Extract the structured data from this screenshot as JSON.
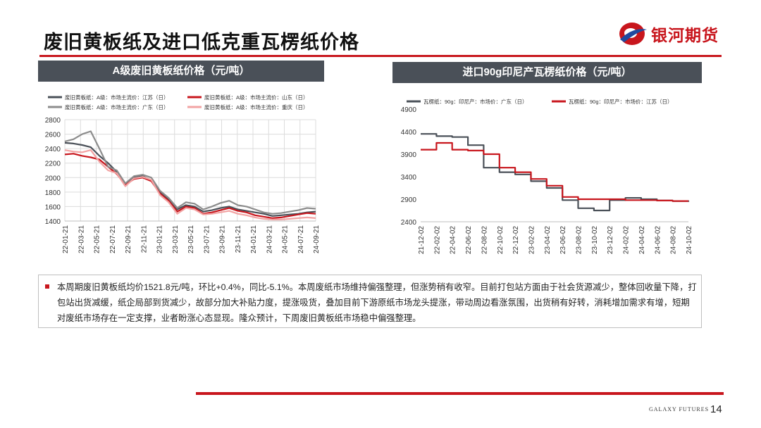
{
  "page": {
    "title": "废旧黄板纸及进口低克重瓦楞纸价格",
    "brand": "银河期货",
    "footer_brand": "GALAXY FUTURES",
    "page_number": "14",
    "accent_color": "#c8161d",
    "header_bg": "#4a5058"
  },
  "note": {
    "text": "本周期废旧黄板纸均价1521.8元/吨，环比+0.4%，同比-5.1%。本周废纸市场维持偏强整理，但涨势稍有收窄。目前打包站方面由于社会货源减少，整体回收量下降，打包站出货减缓，纸企局部到货减少，故部分加大补贴力度，提涨吸货，叠加目前下游原纸市场龙头提涨，带动周边看涨氛围，出货稍有好转，消耗增加需求有增，短期对废纸市场存在一定支撑，业者盼涨心态显现。隆众预计，下周废旧黄板纸市场稳中偏强整理。"
  },
  "chart_data": [
    {
      "type": "line",
      "title": "A级废旧黄板纸价格（元/吨）",
      "ylim": [
        1400,
        2800
      ],
      "yticks": [
        1400,
        1600,
        1800,
        2000,
        2200,
        2400,
        2600,
        2800
      ],
      "grid": true,
      "legend_position": "top",
      "x_labels": [
        "22-01-21",
        "22-03-21",
        "22-05-21",
        "22-07-21",
        "22-09-21",
        "22-11-21",
        "23-01-21",
        "23-03-21",
        "23-05-21",
        "23-07-21",
        "23-09-21",
        "23-11-21",
        "24-01-21",
        "24-03-21",
        "24-05-21",
        "24-07-21",
        "24-09-21"
      ],
      "series": [
        {
          "name": "废旧黄板纸：A级：市场主流价：江苏（日）",
          "color": "#4a5058",
          "values": [
            2480,
            2470,
            2450,
            2420,
            2300,
            2200,
            2080,
            1900,
            2000,
            2020,
            1960,
            1800,
            1700,
            1560,
            1620,
            1600,
            1530,
            1550,
            1580,
            1600,
            1560,
            1540,
            1520,
            1500,
            1470,
            1480,
            1490,
            1500,
            1520,
            1530
          ]
        },
        {
          "name": "废旧黄板纸：A级：市场主流价：山东（日）",
          "color": "#c8161d",
          "values": [
            2320,
            2330,
            2300,
            2280,
            2250,
            2150,
            2050,
            1900,
            1980,
            2000,
            1950,
            1780,
            1680,
            1530,
            1600,
            1580,
            1500,
            1520,
            1550,
            1580,
            1540,
            1520,
            1480,
            1460,
            1440,
            1450,
            1470,
            1490,
            1510,
            1500
          ]
        },
        {
          "name": "废旧黄板纸：A级：市场主流价：广东（日）",
          "color": "#8c8c8c",
          "values": [
            2500,
            2530,
            2600,
            2640,
            2400,
            2150,
            2100,
            1920,
            2020,
            2040,
            2000,
            1820,
            1720,
            1580,
            1660,
            1640,
            1560,
            1600,
            1650,
            1680,
            1620,
            1600,
            1560,
            1520,
            1500,
            1510,
            1530,
            1550,
            1580,
            1570
          ]
        },
        {
          "name": "废旧黄板纸：A级：市场主流价：重庆（日）",
          "color": "#f2a3a3",
          "values": [
            2380,
            2360,
            2350,
            2380,
            2220,
            2100,
            2060,
            1880,
            1990,
            2010,
            1970,
            1760,
            1660,
            1500,
            1580,
            1560,
            1490,
            1500,
            1520,
            1540,
            1500,
            1480,
            1450,
            1430,
            1420,
            1420,
            1430,
            1440,
            1450,
            1440
          ]
        }
      ]
    },
    {
      "type": "line",
      "title": "进口90g印尼产瓦楞纸价格（元/吨）",
      "ylim": [
        2400,
        4900
      ],
      "yticks": [
        2400,
        2900,
        3400,
        3900,
        4400,
        4900
      ],
      "grid": false,
      "legend_position": "top",
      "x_labels": [
        "21-12-02",
        "22-02-02",
        "22-04-02",
        "22-06-02",
        "22-08-02",
        "22-10-02",
        "22-12-02",
        "23-02-02",
        "23-04-02",
        "23-06-02",
        "23-08-02",
        "23-10-02",
        "23-12-02",
        "24-02-02",
        "24-04-02",
        "24-06-02",
        "24-08-02",
        "24-10-02"
      ],
      "series": [
        {
          "name": "瓦楞纸：90g：印尼产：市场价：广东（日）",
          "color": "#4a5058",
          "values": [
            4350,
            4300,
            4280,
            4100,
            3600,
            3500,
            3450,
            3300,
            3150,
            2880,
            2700,
            2650,
            2880,
            2930,
            2900,
            2870,
            2860,
            2840
          ]
        },
        {
          "name": "瓦楞纸：90g：印尼产：市场价：江苏（日）",
          "color": "#c8161d",
          "values": [
            4000,
            4150,
            4000,
            3980,
            3900,
            3600,
            3500,
            3350,
            3200,
            2950,
            2900,
            2900,
            2900,
            2880,
            2880,
            2870,
            2860,
            2860
          ]
        }
      ]
    }
  ]
}
